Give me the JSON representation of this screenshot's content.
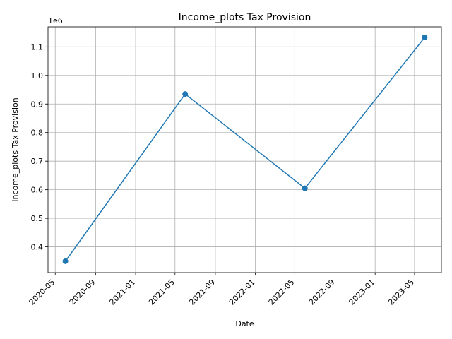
{
  "chart_data": {
    "type": "line",
    "title": "Income_plots Tax Provision",
    "xlabel": "Date",
    "ylabel": "Income_plots Tax Provision",
    "y_offset_label": "1e6",
    "x_scale": "date",
    "x_ticks": [
      "2020-05",
      "2020-09",
      "2021-01",
      "2021-05",
      "2021-09",
      "2022-01",
      "2022-05",
      "2022-09",
      "2023-01",
      "2023-05"
    ],
    "y_ticks": [
      "0.4",
      "0.5",
      "0.6",
      "0.7",
      "0.8",
      "0.9",
      "1.0",
      "1.1"
    ],
    "xlim": [
      "2020-04-09",
      "2023-07-22"
    ],
    "ylim": [
      310000,
      1170000
    ],
    "grid": true,
    "color": "#1f77b4",
    "marker": "circle",
    "series": [
      {
        "x": [
          "2020-06-01",
          "2021-06-01",
          "2022-06-01",
          "2023-06-01"
        ],
        "y": [
          350000,
          935000,
          605000,
          1133000
        ]
      }
    ]
  }
}
